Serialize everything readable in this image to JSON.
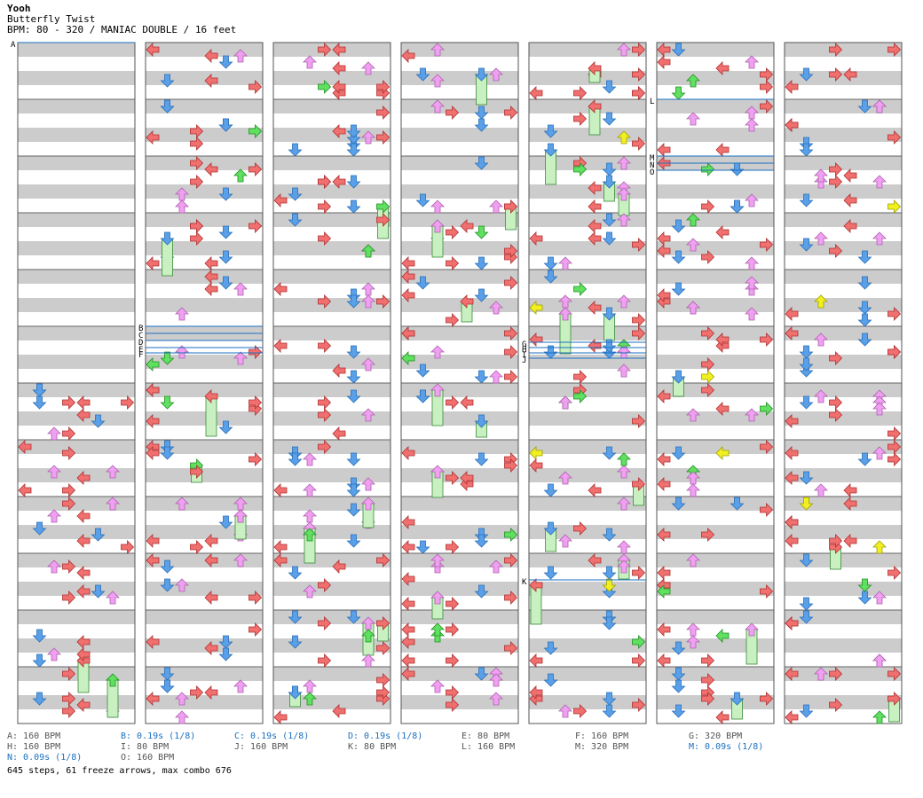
{
  "song": {
    "title_author": "Yooh",
    "song_name": "Butterfly Twist",
    "info": "BPM: 80 - 320 / MANIAC DOUBLE / 16 feet"
  },
  "colors": {
    "band_gray": "#cccccc",
    "red": "#f07070",
    "blue": "#5aa0e8",
    "pink": "#f0a0f0",
    "green": "#60e060",
    "yellow": "#f0f020",
    "freeze": "#c8f0c0",
    "marker_line": "#1a6fc0"
  },
  "chart": {
    "columns": 7,
    "measures_per_column": 12,
    "panels_per_side": 4,
    "column_measure_ranges": [
      [
        1,
        12
      ],
      [
        13,
        24
      ],
      [
        25,
        36
      ],
      [
        37,
        48
      ],
      [
        49,
        60
      ],
      [
        61,
        72
      ],
      [
        73,
        84
      ]
    ],
    "column_first_measure_notes": [
      7,
      1,
      1,
      1,
      1,
      1,
      1
    ]
  },
  "markers": [
    {
      "label": "A",
      "column": 1
    },
    {
      "label": "B",
      "column": 2
    },
    {
      "label": "C",
      "column": 2
    },
    {
      "label": "D",
      "column": 2
    },
    {
      "label": "E",
      "column": 2
    },
    {
      "label": "F",
      "column": 2
    },
    {
      "label": "G",
      "column": 5
    },
    {
      "label": "H",
      "column": 5
    },
    {
      "label": "I",
      "column": 5
    },
    {
      "label": "J",
      "column": 5
    },
    {
      "label": "K",
      "column": 5
    },
    {
      "label": "L",
      "column": 6
    },
    {
      "label": "M",
      "column": 6
    },
    {
      "label": "N",
      "column": 6
    },
    {
      "label": "O",
      "column": 6
    }
  ],
  "legend": [
    {
      "text": "A: 160 BPM",
      "style": "gray"
    },
    {
      "text": "B: 0.19s (1/8)",
      "style": "blue"
    },
    {
      "text": "C: 0.19s (1/8)",
      "style": "blue"
    },
    {
      "text": "D: 0.19s (1/8)",
      "style": "blue"
    },
    {
      "text": "E: 80 BPM",
      "style": "gray"
    },
    {
      "text": "F: 160 BPM",
      "style": "gray"
    },
    {
      "text": "G: 320 BPM",
      "style": "gray"
    },
    {
      "text": "H: 160 BPM",
      "style": "gray"
    },
    {
      "text": "I: 80 BPM",
      "style": "gray"
    },
    {
      "text": "J: 160 BPM",
      "style": "gray"
    },
    {
      "text": "K: 80 BPM",
      "style": "gray"
    },
    {
      "text": "L: 160 BPM",
      "style": "gray"
    },
    {
      "text": "M: 320 BPM",
      "style": "gray"
    },
    {
      "text": "M: 0.09s (1/8)",
      "style": "blue"
    },
    {
      "text": "N: 0.09s (1/8)",
      "style": "blue"
    },
    {
      "text": "O: 160 BPM",
      "style": "gray"
    }
  ],
  "summary": "645 steps, 61 freeze arrows, max combo 676"
}
